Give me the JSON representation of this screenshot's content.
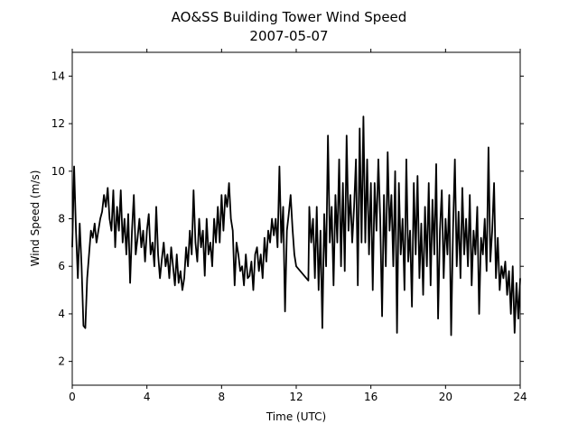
{
  "chart_data": {
    "type": "line",
    "title": "AO&SS Building Tower Wind Speed",
    "subtitle": "2007-05-07",
    "x_label": "Time (UTC)",
    "y_label": "Wind Speed (m/s)",
    "xlim": [
      0,
      24
    ],
    "xticks": [
      0,
      4,
      8,
      12,
      16,
      20,
      24
    ],
    "ylim": [
      1,
      15
    ],
    "yticks": [
      2,
      4,
      6,
      8,
      10,
      12,
      14
    ],
    "color": "#000000",
    "x": [
      0,
      0.1,
      0.2,
      0.3,
      0.4,
      0.5,
      0.6,
      0.7,
      0.8,
      0.9,
      1.0,
      1.1,
      1.2,
      1.3,
      1.4,
      1.5,
      1.6,
      1.7,
      1.8,
      1.9,
      2.0,
      2.1,
      2.2,
      2.3,
      2.4,
      2.5,
      2.6,
      2.7,
      2.8,
      2.9,
      3.0,
      3.1,
      3.2,
      3.3,
      3.4,
      3.5,
      3.6,
      3.7,
      3.8,
      3.9,
      4.0,
      4.1,
      4.2,
      4.3,
      4.4,
      4.5,
      4.6,
      4.7,
      4.8,
      4.9,
      5.0,
      5.1,
      5.2,
      5.3,
      5.4,
      5.5,
      5.6,
      5.7,
      5.8,
      5.9,
      6.0,
      6.1,
      6.2,
      6.3,
      6.4,
      6.5,
      6.6,
      6.7,
      6.8,
      6.9,
      7.0,
      7.1,
      7.2,
      7.3,
      7.4,
      7.5,
      7.6,
      7.7,
      7.8,
      7.9,
      8.0,
      8.1,
      8.2,
      8.3,
      8.4,
      8.5,
      8.6,
      8.7,
      8.8,
      8.9,
      9.0,
      9.1,
      9.2,
      9.3,
      9.4,
      9.5,
      9.6,
      9.7,
      9.8,
      9.9,
      10.0,
      10.1,
      10.2,
      10.3,
      10.4,
      10.5,
      10.6,
      10.7,
      10.8,
      10.9,
      11.0,
      11.1,
      11.2,
      11.3,
      11.4,
      11.5,
      11.6,
      11.7,
      11.8,
      11.9,
      12.0,
      12.65,
      12.7,
      12.8,
      12.9,
      13.0,
      13.1,
      13.2,
      13.3,
      13.4,
      13.5,
      13.6,
      13.7,
      13.8,
      13.9,
      14.0,
      14.1,
      14.2,
      14.3,
      14.4,
      14.5,
      14.6,
      14.7,
      14.8,
      14.9,
      15.0,
      15.1,
      15.2,
      15.3,
      15.4,
      15.5,
      15.6,
      15.7,
      15.8,
      15.9,
      16.0,
      16.1,
      16.2,
      16.3,
      16.4,
      16.5,
      16.6,
      16.7,
      16.8,
      16.9,
      17.0,
      17.1,
      17.2,
      17.3,
      17.4,
      17.5,
      17.6,
      17.7,
      17.8,
      17.9,
      18.0,
      18.1,
      18.2,
      18.3,
      18.4,
      18.5,
      18.6,
      18.7,
      18.8,
      18.9,
      19.0,
      19.1,
      19.2,
      19.3,
      19.4,
      19.5,
      19.6,
      19.7,
      19.8,
      19.9,
      20.0,
      20.1,
      20.2,
      20.3,
      20.4,
      20.5,
      20.6,
      20.7,
      20.8,
      20.9,
      21.0,
      21.1,
      21.2,
      21.3,
      21.4,
      21.5,
      21.6,
      21.7,
      21.8,
      21.9,
      22.0,
      22.1,
      22.2,
      22.3,
      22.4,
      22.5,
      22.6,
      22.7,
      22.8,
      22.9,
      23.0,
      23.1,
      23.2,
      23.3,
      23.4,
      23.5,
      23.6,
      23.7,
      23.8,
      23.9,
      24.0
    ],
    "values": [
      6.8,
      10.2,
      7.5,
      5.5,
      7.8,
      6,
      3.5,
      3.4,
      5.5,
      6.5,
      7.5,
      7.2,
      7.8,
      7,
      7.5,
      8,
      8.3,
      9,
      8.5,
      9.3,
      8,
      7.5,
      9.2,
      6.8,
      8.5,
      7.5,
      9.2,
      7,
      8,
      6.5,
      8.2,
      5.3,
      7.5,
      9,
      6.5,
      7.2,
      8,
      6.8,
      7.5,
      6.2,
      7.5,
      8.2,
      6.5,
      7,
      6,
      8.5,
      6.5,
      5.5,
      6.3,
      7,
      6,
      6.5,
      5.5,
      6.8,
      6,
      5.2,
      6.5,
      5.3,
      5.8,
      5,
      5.5,
      6.8,
      6,
      7.5,
      6.5,
      9.2,
      7,
      6.2,
      8,
      6.8,
      7.5,
      5.6,
      8,
      6.5,
      7,
      6,
      8,
      7,
      8.5,
      7,
      9,
      7.5,
      9,
      8.5,
      9.5,
      8,
      7.5,
      5.2,
      7,
      6.5,
      5.8,
      6,
      5.2,
      6.5,
      5.5,
      5.6,
      6.2,
      5,
      6.5,
      6.8,
      5.8,
      6.5,
      5.5,
      7.2,
      6.2,
      7.5,
      7,
      8,
      7.3,
      8,
      6.8,
      10.2,
      7,
      8.5,
      4.1,
      7.5,
      8.2,
      9,
      7.6,
      6.5,
      6,
      5.4,
      8.5,
      7,
      8,
      5.5,
      8.5,
      5,
      7.5,
      3.4,
      8.2,
      6,
      11.5,
      7,
      8.5,
      5.2,
      9,
      7,
      10.5,
      6,
      9.5,
      5.8,
      11.5,
      7.5,
      9,
      7,
      8.5,
      10.5,
      5.2,
      11.8,
      7,
      12.3,
      7,
      10.5,
      6.5,
      9.5,
      5,
      9.5,
      7.5,
      10.5,
      8,
      3.9,
      9,
      6,
      10.8,
      7.5,
      9,
      6,
      10,
      3.2,
      9.5,
      6.5,
      8,
      5,
      10.5,
      6.2,
      7.5,
      4.3,
      9.5,
      6.5,
      9.8,
      5.5,
      7.8,
      4.8,
      8.5,
      6,
      9.5,
      5.2,
      8.8,
      6.5,
      10.3,
      3.8,
      7.5,
      9.2,
      5.5,
      8,
      6.5,
      9,
      3.1,
      7.5,
      10.5,
      6,
      8.3,
      5.5,
      9.3,
      6.5,
      8,
      6,
      9,
      5.2,
      7.5,
      6.5,
      8.5,
      4,
      7.2,
      6.5,
      8,
      5.8,
      11,
      6.2,
      7.5,
      9.5,
      5.5,
      7.2,
      5,
      6,
      5.5,
      6.2,
      4.8,
      5.8,
      4,
      6,
      3.2,
      5.3,
      3.8,
      5.5
    ]
  }
}
